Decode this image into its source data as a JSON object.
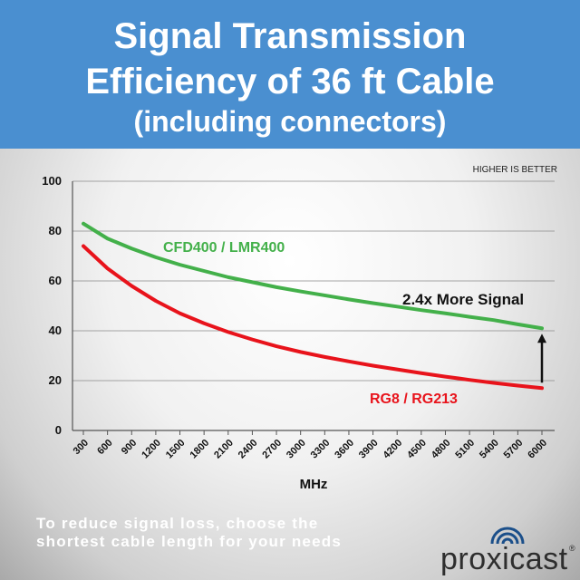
{
  "header": {
    "line1": "Signal Transmission",
    "line2": "Efficiency of 36 ft Cable",
    "line3": "(including connectors)"
  },
  "chart_data": {
    "type": "line",
    "title": "",
    "xlabel": "MHz",
    "ylabel": "",
    "ylim": [
      0,
      100
    ],
    "yticks": [
      0,
      20,
      40,
      60,
      80,
      100
    ],
    "grid": "horizontal",
    "x": [
      300,
      600,
      900,
      1200,
      1500,
      1800,
      2100,
      2400,
      2700,
      3000,
      3300,
      3600,
      3900,
      4200,
      4500,
      4800,
      5100,
      5400,
      5700,
      6000
    ],
    "series": [
      {
        "name": "CFD400 / LMR400",
        "color": "#43b04a",
        "values": [
          83,
          77,
          73,
          69.5,
          66.5,
          64,
          61.5,
          59.5,
          57.5,
          55.8,
          54.2,
          52.6,
          51.1,
          49.7,
          48.3,
          47,
          45.6,
          44.3,
          42.6,
          41
        ]
      },
      {
        "name": "RG8 / RG213",
        "color": "#e8131b",
        "values": [
          74,
          65,
          58,
          52,
          47,
          43,
          39.5,
          36.5,
          33.8,
          31.5,
          29.5,
          27.7,
          26,
          24.5,
          23,
          21.6,
          20.3,
          19.1,
          18,
          17
        ]
      }
    ],
    "annotations": {
      "corner_note": "HIGHER IS BETTER",
      "comparison": "2.4x More Signal"
    }
  },
  "footer": {
    "line1": "To reduce signal loss, choose the",
    "line2": "shortest cable length for your needs",
    "brand": "proxicast",
    "registered": "®"
  }
}
